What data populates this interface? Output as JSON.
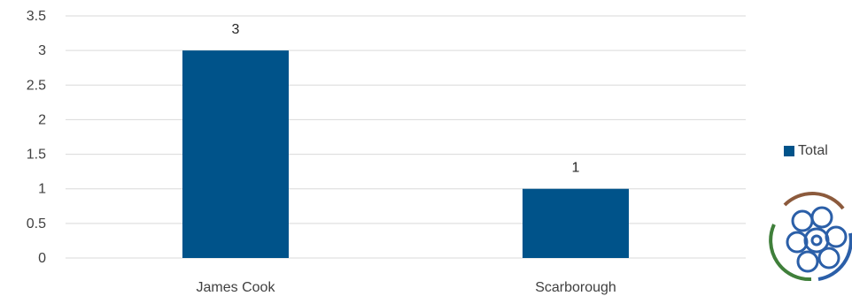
{
  "chart_data": {
    "type": "bar",
    "categories": [
      "James Cook",
      "Scarborough"
    ],
    "series": [
      {
        "name": "Total",
        "values": [
          3,
          1
        ],
        "color": "#00538a"
      }
    ],
    "ylim": [
      0,
      3.5
    ],
    "yticks": [
      "0",
      "0.5",
      "1",
      "1.5",
      "2",
      "2.5",
      "3",
      "3.5"
    ],
    "data_labels": [
      "3",
      "1"
    ],
    "grid": true,
    "legend": "right"
  },
  "logo": {
    "icon": "tudor-rose-icon",
    "colors": [
      "#8c5a3c",
      "#3f7f3a",
      "#2b5fa8"
    ]
  }
}
